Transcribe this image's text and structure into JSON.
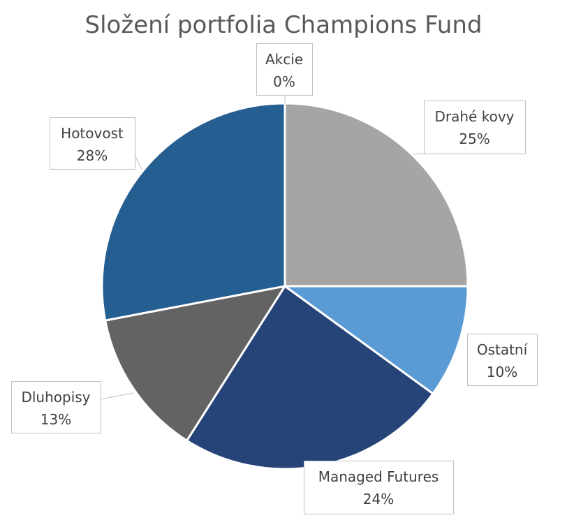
{
  "chart_data": {
    "type": "pie",
    "title": "Složení portfolia Champions Fund",
    "slices": [
      {
        "label": "Akcie",
        "value": 0,
        "display": "0%",
        "color": "#4472C4"
      },
      {
        "label": "Drahé kovy",
        "value": 25,
        "display": "25%",
        "color": "#A5A5A5"
      },
      {
        "label": "Ostatní",
        "value": 10,
        "display": "10%",
        "color": "#5B9BD5"
      },
      {
        "label": "Managed Futures",
        "value": 24,
        "display": "24%",
        "color": "#264478"
      },
      {
        "label": "Dluhopisy",
        "value": 13,
        "display": "13%",
        "color": "#636363"
      },
      {
        "label": "Hotovost",
        "value": 28,
        "display": "28%",
        "color": "#255E91"
      }
    ],
    "start_angle_deg": 0,
    "direction": "clockwise",
    "legend": "none",
    "data_labels": "callout"
  }
}
